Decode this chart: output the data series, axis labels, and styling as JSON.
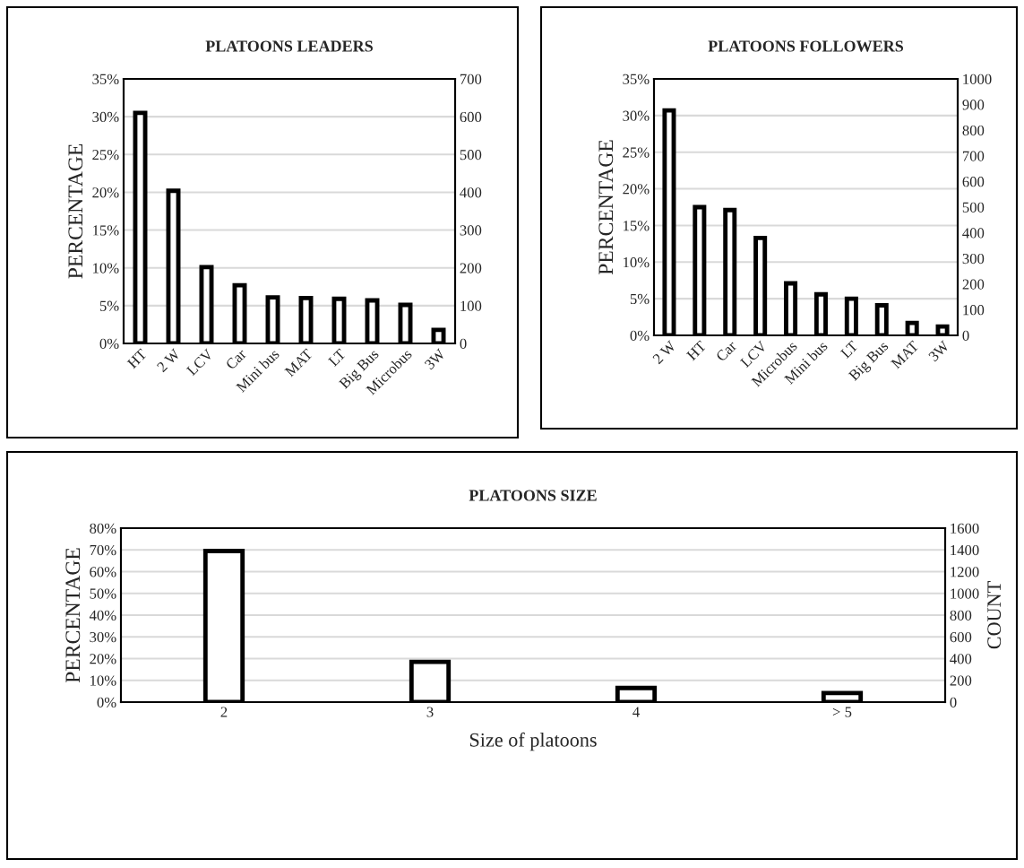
{
  "chart_data": [
    {
      "type": "bar",
      "title": "PLATOONS LEADERS",
      "ylabel": "PERCENTAGE",
      "categories": [
        "HT",
        "2 W",
        "LCV",
        "Car",
        "Mini bus",
        "MAT",
        "LT",
        "Big Bus",
        "Microbus",
        "3W"
      ],
      "series": [
        {
          "color": "#ffffff",
          "values": [
            30.5,
            20.2,
            10.1,
            7.7,
            6.1,
            6.0,
            5.9,
            5.7,
            5.1,
            1.8
          ]
        }
      ],
      "ylim": [
        0,
        35
      ],
      "yticks": [
        {
          "value": 0,
          "label": "0%"
        },
        {
          "value": 5,
          "label": "5%"
        },
        {
          "value": 10,
          "label": "10%"
        },
        {
          "value": 15,
          "label": "15%"
        },
        {
          "value": 20,
          "label": "20%"
        },
        {
          "value": 25,
          "label": "25%"
        },
        {
          "value": 30,
          "label": "30%"
        },
        {
          "value": 35,
          "label": "35%"
        }
      ],
      "y2lim": [
        0,
        700
      ],
      "y2ticks": [
        0,
        100,
        200,
        300,
        400,
        500,
        600,
        700
      ],
      "grid": "y",
      "legend": false
    },
    {
      "type": "bar",
      "title": "PLATOONS FOLLOWERS",
      "ylabel": "PERCENTAGE",
      "categories": [
        "2 W",
        "HT",
        "Car",
        "LCV",
        "Microbus",
        "Mini bus",
        "LT",
        "Big Bus",
        "MAT",
        "3W"
      ],
      "series": [
        {
          "color": "#ffffff",
          "values": [
            30.7,
            17.5,
            17.1,
            13.3,
            7.1,
            5.6,
            5.0,
            4.1,
            1.7,
            1.2
          ]
        }
      ],
      "ylim": [
        0,
        35
      ],
      "yticks": [
        {
          "value": 0,
          "label": "0%"
        },
        {
          "value": 5,
          "label": "5%"
        },
        {
          "value": 10,
          "label": "10%"
        },
        {
          "value": 15,
          "label": "15%"
        },
        {
          "value": 20,
          "label": "20%"
        },
        {
          "value": 25,
          "label": "25%"
        },
        {
          "value": 30,
          "label": "30%"
        },
        {
          "value": 35,
          "label": "35%"
        }
      ],
      "y2lim": [
        0,
        1000
      ],
      "y2ticks": [
        0,
        100,
        200,
        300,
        400,
        500,
        600,
        700,
        800,
        900,
        1000
      ],
      "grid": "y",
      "legend": false
    },
    {
      "type": "bar",
      "title": "PLATOONS SIZE",
      "ylabel": "PERCENTAGE",
      "y2label": "COUNT",
      "xlabel": "Size of platoons",
      "categories": [
        "2",
        "3",
        "4",
        "> 5"
      ],
      "series": [
        {
          "color": "#ffffff",
          "values": [
            69.5,
            18.5,
            6.5,
            4.2
          ]
        }
      ],
      "ylim": [
        0,
        80
      ],
      "yticks": [
        {
          "value": 0,
          "label": "0%"
        },
        {
          "value": 10,
          "label": "10%"
        },
        {
          "value": 20,
          "label": "20%"
        },
        {
          "value": 30,
          "label": "30%"
        },
        {
          "value": 40,
          "label": "40%"
        },
        {
          "value": 50,
          "label": "50%"
        },
        {
          "value": 60,
          "label": "60%"
        },
        {
          "value": 70,
          "label": "70%"
        },
        {
          "value": 80,
          "label": "80%"
        }
      ],
      "y2lim": [
        0,
        1600
      ],
      "y2ticks": [
        0,
        200,
        400,
        600,
        800,
        1000,
        1200,
        1400,
        1600
      ],
      "grid": "y",
      "legend": false
    }
  ]
}
